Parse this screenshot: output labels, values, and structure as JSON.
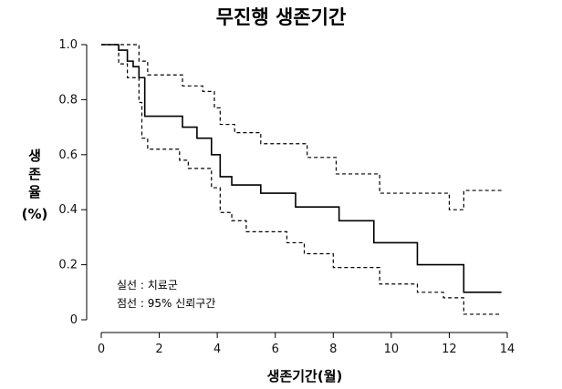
{
  "chart_data": {
    "type": "line",
    "title": "무진행 생존기간",
    "xlabel": "생존기간(월)",
    "ylabel": [
      "생",
      "존",
      "율",
      "(%)"
    ],
    "xlim": [
      0,
      14
    ],
    "ylim": [
      0,
      1.0
    ],
    "x_ticks": [
      0,
      2,
      4,
      6,
      8,
      10,
      12,
      14
    ],
    "y_ticks": [
      0,
      0.2,
      0.4,
      0.6,
      0.8,
      1.0
    ],
    "y_tick_labels": [
      "0",
      "0.2",
      "0.4",
      "0.6",
      "0.8",
      "1.0"
    ],
    "grid": false,
    "annotations": [
      "실선 : 치료군",
      "점선 : 95% 신뢰구간"
    ],
    "series": [
      {
        "style": "solid",
        "x": [
          0,
          0.6,
          0.9,
          1.1,
          1.3,
          1.5,
          2.8,
          3.3,
          3.8,
          4.1,
          4.5,
          5.5,
          6.7,
          8.2,
          9.4,
          10.9,
          12.5,
          13.8
        ],
        "y": [
          1.0,
          0.98,
          0.94,
          0.92,
          0.88,
          0.74,
          0.7,
          0.66,
          0.6,
          0.52,
          0.49,
          0.46,
          0.41,
          0.36,
          0.28,
          0.2,
          0.1,
          0.1
        ]
      },
      {
        "style": "dashed",
        "x": [
          0,
          1.3,
          1.6,
          2.8,
          3.5,
          3.9,
          4.1,
          4.6,
          5.5,
          7.1,
          8.1,
          9.6,
          12.0,
          12.5,
          13.8
        ],
        "y": [
          1.0,
          0.94,
          0.89,
          0.85,
          0.83,
          0.77,
          0.71,
          0.68,
          0.64,
          0.59,
          0.53,
          0.46,
          0.4,
          0.47,
          0.47
        ]
      },
      {
        "style": "dashed",
        "x": [
          0,
          0.6,
          0.9,
          1.3,
          1.4,
          1.6,
          2.7,
          3.0,
          3.8,
          4.1,
          4.5,
          5.0,
          6.4,
          7.0,
          8.0,
          9.6,
          10.9,
          11.8,
          12.5,
          13.8
        ],
        "y": [
          1.0,
          0.93,
          0.88,
          0.79,
          0.66,
          0.62,
          0.58,
          0.55,
          0.48,
          0.39,
          0.36,
          0.32,
          0.28,
          0.24,
          0.19,
          0.13,
          0.1,
          0.08,
          0.02,
          0.02
        ]
      }
    ]
  }
}
